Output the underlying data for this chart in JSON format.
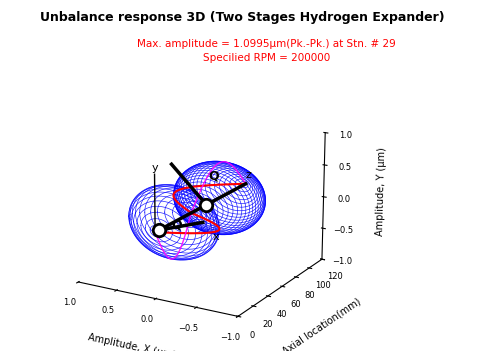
{
  "title": "Unbalance response 3D (Two Stages Hydrogen Expander)",
  "subtitle_line1": "Max. amplitude = 1.0995μm(Pk.-Pk.) at Stn. # 29",
  "subtitle_line2": "Specilied RPM = 200000",
  "subtitle_color": "#ff0000",
  "xlabel": "Amplitude, X (μm)",
  "ylabel": "Axial location(mm)",
  "zlabel": "Amplitude, Y (μm)",
  "axial_min": 0,
  "axial_max": 120,
  "amp_min": -1,
  "amp_max": 1,
  "num_stations": 55,
  "num_orbit_points": 80,
  "background_color": "#ffffff",
  "orbit_color": "#0000ff",
  "centerline_color": "#ff0000",
  "pink_line_color": "#ff00ff",
  "dotted_line_color": "#000000",
  "shaft_color": "#000000",
  "elev": 18,
  "azim": -60,
  "title_fontsize": 9,
  "subtitle_fontsize": 7.5,
  "axis_label_fontsize": 7,
  "tick_fontsize": 6
}
